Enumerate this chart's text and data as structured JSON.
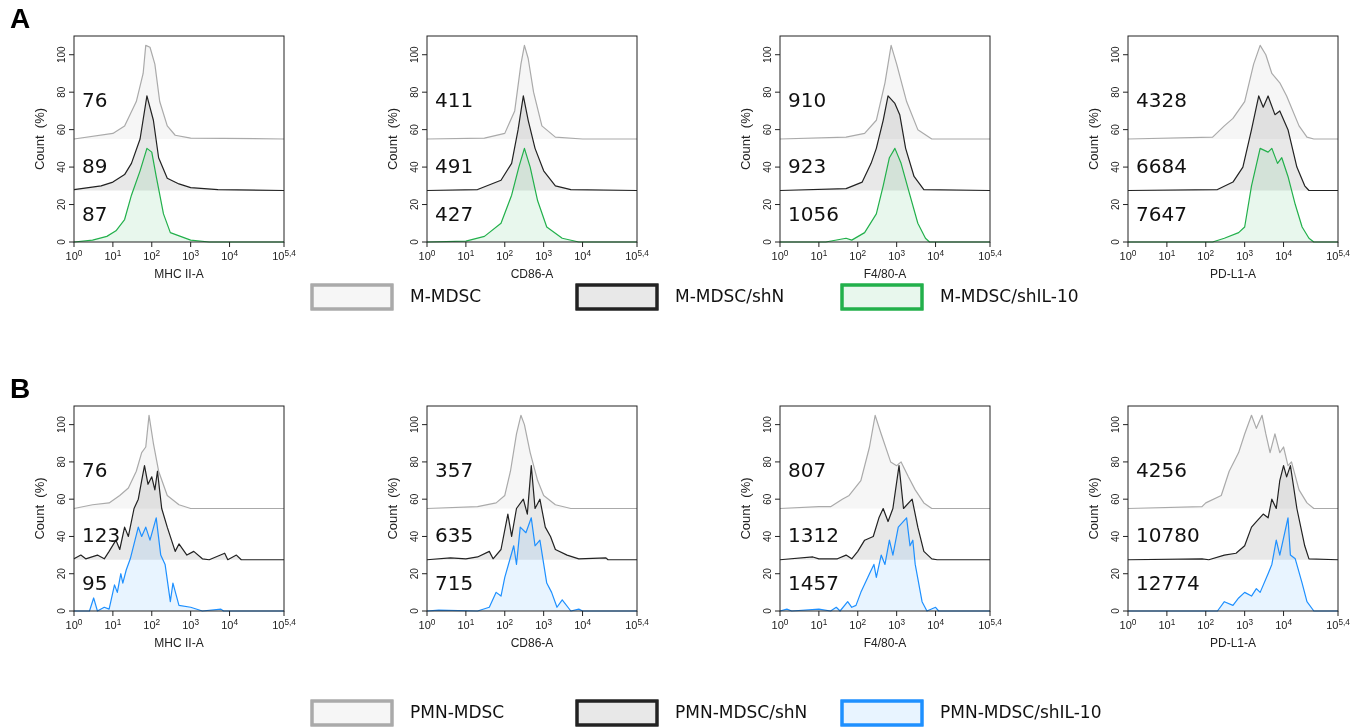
{
  "chart_data": [
    {
      "type": "area",
      "title": "A",
      "xlabel": "MHC II-A",
      "ylabel": "Count  (%)",
      "log": "x",
      "xlim": [
        1,
        251189
      ],
      "xticks": [
        {
          "value": 1,
          "label": "10$^{0}$"
        },
        {
          "value": 10,
          "label": "10$^{1}$"
        },
        {
          "value": 100,
          "label": "10$^{2}$"
        },
        {
          "value": 1000,
          "label": "10$^{3}$"
        },
        {
          "value": 10000,
          "label": "10$^{4}$"
        },
        {
          "value": 251189,
          "label": "10$^{5,4}$"
        }
      ],
      "ylim": [
        0,
        110
      ],
      "yticks": [
        0,
        20,
        40,
        60,
        80,
        100
      ],
      "legend": "bottom",
      "annotations": [
        "76",
        "89",
        "87"
      ],
      "series": [
        {
          "name": "M-MDSC",
          "color": "#aaaaaa",
          "x": [
            1,
            10,
            20,
            40,
            60,
            70,
            90,
            120,
            160,
            250,
            400,
            1000,
            251189
          ],
          "values": [
            55,
            58,
            62,
            75,
            90,
            105,
            104,
            95,
            75,
            62,
            57,
            55.5,
            55
          ]
        },
        {
          "name": "M-MDSC/shN",
          "color": "#222222",
          "x": [
            1,
            5,
            10,
            20,
            30,
            50,
            75,
            110,
            150,
            250,
            500,
            1000,
            5000,
            251189
          ],
          "values": [
            28,
            30,
            32,
            36,
            42,
            55,
            78,
            65,
            45,
            34,
            31,
            29,
            28,
            27.5
          ]
        },
        {
          "name": "M-MDSC/shIL-10",
          "color": "#22b04b",
          "x": [
            1,
            3,
            7,
            12,
            20,
            30,
            50,
            75,
            100,
            130,
            200,
            300,
            1000,
            3000,
            251189
          ],
          "values": [
            0,
            1,
            3,
            6,
            12,
            25,
            38,
            50,
            48,
            35,
            15,
            5,
            1,
            0,
            0
          ]
        }
      ]
    },
    {
      "type": "area",
      "xlabel": "CD86-A",
      "ylabel": "Count  (%)",
      "log": "x",
      "xlim": [
        1,
        251189
      ],
      "xticks": [
        {
          "value": 1,
          "label": "10$^{0}$"
        },
        {
          "value": 10,
          "label": "10$^{1}$"
        },
        {
          "value": 100,
          "label": "10$^{2}$"
        },
        {
          "value": 1000,
          "label": "10$^{3}$"
        },
        {
          "value": 10000,
          "label": "10$^{4}$"
        },
        {
          "value": 251189,
          "label": "10$^{5,4}$"
        }
      ],
      "ylim": [
        0,
        110
      ],
      "yticks": [
        0,
        20,
        40,
        60,
        80,
        100
      ],
      "annotations": [
        "411",
        "491",
        "427"
      ],
      "series": [
        {
          "color": "#aaaaaa",
          "x": [
            1,
            30,
            100,
            180,
            260,
            320,
            400,
            550,
            900,
            2000,
            10000,
            251189
          ],
          "values": [
            55,
            55.5,
            58,
            70,
            95,
            105,
            98,
            80,
            62,
            56,
            55,
            55
          ]
        },
        {
          "color": "#222222",
          "x": [
            1,
            20,
            80,
            150,
            220,
            300,
            400,
            600,
            1000,
            2000,
            5000,
            251189
          ],
          "values": [
            27.5,
            28,
            33,
            42,
            60,
            78,
            65,
            50,
            38,
            30,
            28,
            27.5
          ]
        },
        {
          "color": "#22b04b",
          "x": [
            1,
            10,
            30,
            80,
            150,
            230,
            320,
            450,
            700,
            1200,
            3000,
            8000,
            251189
          ],
          "values": [
            0,
            0.5,
            3,
            10,
            25,
            40,
            50,
            40,
            22,
            8,
            2,
            0,
            0
          ]
        }
      ]
    },
    {
      "type": "area",
      "xlabel": "F4/80-A",
      "ylabel": "Count  (%)",
      "log": "x",
      "xlim": [
        1,
        251189
      ],
      "xticks": [
        {
          "value": 1,
          "label": "10$^{0}$"
        },
        {
          "value": 10,
          "label": "10$^{1}$"
        },
        {
          "value": 100,
          "label": "10$^{2}$"
        },
        {
          "value": 1000,
          "label": "10$^{3}$"
        },
        {
          "value": 10000,
          "label": "10$^{4}$"
        },
        {
          "value": 251189,
          "label": "10$^{5,4}$"
        }
      ],
      "ylim": [
        0,
        110
      ],
      "yticks": [
        0,
        20,
        40,
        60,
        80,
        100
      ],
      "annotations": [
        "910",
        "923",
        "1056"
      ],
      "series": [
        {
          "color": "#aaaaaa",
          "x": [
            1,
            50,
            150,
            300,
            500,
            720,
            1000,
            1800,
            3500,
            8000,
            251189
          ],
          "values": [
            55,
            56,
            58,
            65,
            85,
            105,
            95,
            75,
            60,
            55,
            55
          ]
        },
        {
          "color": "#222222",
          "x": [
            1,
            50,
            130,
            220,
            300,
            450,
            600,
            900,
            1200,
            1700,
            2800,
            5000,
            251189
          ],
          "values": [
            27.5,
            28.5,
            32,
            42,
            50,
            65,
            78,
            74,
            68,
            50,
            35,
            28,
            27.5
          ]
        },
        {
          "color": "#22b04b",
          "x": [
            1,
            15,
            50,
            70,
            150,
            300,
            450,
            650,
            900,
            1300,
            2000,
            3500,
            5500,
            7000,
            251189
          ],
          "values": [
            0,
            0,
            2,
            1,
            5,
            15,
            30,
            45,
            50,
            42,
            28,
            10,
            2,
            0,
            0
          ]
        }
      ]
    },
    {
      "type": "area",
      "xlabel": "PD-L1-A",
      "ylabel": "Count  (%)",
      "log": "x",
      "xlim": [
        1,
        251189
      ],
      "xticks": [
        {
          "value": 1,
          "label": "10$^{0}$"
        },
        {
          "value": 10,
          "label": "10$^{1}$"
        },
        {
          "value": 100,
          "label": "10$^{2}$"
        },
        {
          "value": 1000,
          "label": "10$^{3}$"
        },
        {
          "value": 10000,
          "label": "10$^{4}$"
        },
        {
          "value": 251189,
          "label": "10$^{5,4}$"
        }
      ],
      "ylim": [
        0,
        110
      ],
      "yticks": [
        0,
        20,
        40,
        60,
        80,
        100
      ],
      "annotations": [
        "4328",
        "6684",
        "7647"
      ],
      "series": [
        {
          "color": "#aaaaaa",
          "x": [
            1,
            150,
            300,
            500,
            1000,
            1700,
            2500,
            3500,
            5000,
            8000,
            12000,
            25000,
            40000,
            60000,
            251189
          ],
          "values": [
            55,
            56,
            62,
            66,
            75,
            95,
            105,
            100,
            90,
            85,
            78,
            62,
            56,
            55,
            55
          ]
        },
        {
          "color": "#222222",
          "x": [
            1,
            200,
            500,
            900,
            1500,
            2300,
            3000,
            4000,
            6000,
            8000,
            13000,
            22000,
            35000,
            45000,
            251189
          ],
          "values": [
            27.5,
            28,
            32,
            40,
            60,
            78,
            72,
            78,
            68,
            70,
            60,
            40,
            30,
            27.5,
            27.5
          ]
        },
        {
          "color": "#22b04b",
          "x": [
            1,
            150,
            300,
            700,
            1000,
            1500,
            2500,
            4000,
            5000,
            7000,
            9000,
            13000,
            20000,
            30000,
            45000,
            60000,
            251189
          ],
          "values": [
            0,
            0,
            2,
            5,
            8,
            30,
            50,
            48,
            50,
            42,
            45,
            35,
            20,
            8,
            2,
            0,
            0
          ]
        }
      ]
    },
    {
      "type": "area",
      "title": "B",
      "xlabel": "MHC II-A",
      "ylabel": "Count  (%)",
      "log": "x",
      "xlim": [
        1,
        251189
      ],
      "xticks": [
        {
          "value": 1,
          "label": "10$^{0}$"
        },
        {
          "value": 10,
          "label": "10$^{1}$"
        },
        {
          "value": 100,
          "label": "10$^{2}$"
        },
        {
          "value": 1000,
          "label": "10$^{3}$"
        },
        {
          "value": 10000,
          "label": "10$^{4}$"
        },
        {
          "value": 251189,
          "label": "10$^{5,4}$"
        }
      ],
      "ylim": [
        0,
        110
      ],
      "yticks": [
        0,
        20,
        40,
        60,
        80,
        100
      ],
      "legend": "bottom",
      "annotations": [
        "76",
        "123",
        "95"
      ],
      "series": [
        {
          "name": "PMN-MDSC",
          "color": "#aaaaaa",
          "x": [
            1,
            3,
            8,
            15,
            25,
            40,
            55,
            70,
            85,
            110,
            150,
            250,
            500,
            1000,
            251189
          ],
          "values": [
            55,
            57,
            58,
            62,
            66,
            75,
            85,
            88,
            105,
            90,
            75,
            62,
            57,
            55,
            55
          ]
        },
        {
          "name": "PMN-MDSC/shN",
          "color": "#222222",
          "x": [
            1,
            1.5,
            2,
            4,
            6,
            8,
            12,
            15,
            20,
            25,
            35,
            45,
            55,
            65,
            80,
            100,
            120,
            140,
            180,
            250,
            400,
            500,
            800,
            1200,
            2000,
            3000,
            7500,
            9000,
            15000,
            20000,
            251189
          ],
          "values": [
            28,
            30,
            28,
            30,
            28,
            32,
            38,
            33,
            45,
            40,
            55,
            60,
            70,
            78,
            68,
            72,
            65,
            75,
            55,
            45,
            32,
            36,
            30,
            32,
            28,
            27.5,
            31,
            27.5,
            30,
            27.5,
            27.5
          ]
        },
        {
          "name": "PMN-MDSC/shIL-10",
          "color": "#1e90ff",
          "x": [
            1,
            2.5,
            3.2,
            4,
            6,
            8,
            11,
            13,
            16,
            18,
            22,
            28,
            45,
            55,
            70,
            90,
            130,
            170,
            220,
            300,
            350,
            500,
            1000,
            2000,
            6000,
            7000,
            251189
          ],
          "values": [
            0,
            0,
            7,
            0,
            2,
            1,
            14,
            10,
            20,
            15,
            22,
            28,
            45,
            40,
            45,
            38,
            50,
            30,
            25,
            5,
            15,
            3,
            2,
            0,
            1,
            0,
            0
          ]
        }
      ]
    },
    {
      "type": "area",
      "xlabel": "CD86-A",
      "ylabel": "Count  (%)",
      "log": "x",
      "xlim": [
        1,
        251189
      ],
      "xticks": [
        {
          "value": 1,
          "label": "10$^{0}$"
        },
        {
          "value": 10,
          "label": "10$^{1}$"
        },
        {
          "value": 100,
          "label": "10$^{2}$"
        },
        {
          "value": 1000,
          "label": "10$^{3}$"
        },
        {
          "value": 10000,
          "label": "10$^{4}$"
        },
        {
          "value": 251189,
          "label": "10$^{5,4}$"
        }
      ],
      "ylim": [
        0,
        110
      ],
      "yticks": [
        0,
        20,
        40,
        60,
        80,
        100
      ],
      "annotations": [
        "357",
        "635",
        "715"
      ],
      "series": [
        {
          "color": "#aaaaaa",
          "x": [
            1,
            20,
            60,
            100,
            140,
            200,
            260,
            320,
            450,
            700,
            1000,
            2000,
            5000,
            251189
          ],
          "values": [
            55,
            56,
            58,
            62,
            75,
            95,
            105,
            100,
            85,
            70,
            62,
            57,
            55,
            55
          ]
        },
        {
          "color": "#222222",
          "x": [
            1,
            4,
            10,
            20,
            40,
            50,
            80,
            120,
            150,
            200,
            300,
            380,
            480,
            600,
            800,
            1100,
            1500,
            2000,
            4000,
            8000,
            40000,
            45000,
            251189
          ],
          "values": [
            27.5,
            28.5,
            28,
            29,
            32,
            28,
            33,
            52,
            40,
            55,
            60,
            52,
            78,
            55,
            60,
            45,
            40,
            33,
            30,
            28,
            28.5,
            27.5,
            27.5
          ]
        },
        {
          "color": "#1e90ff",
          "x": [
            1,
            2,
            20,
            40,
            60,
            80,
            100,
            170,
            200,
            250,
            350,
            480,
            600,
            800,
            1200,
            1600,
            2200,
            3000,
            5000,
            8000,
            10000,
            251189
          ],
          "values": [
            0,
            0.5,
            0,
            2,
            10,
            8,
            18,
            35,
            25,
            45,
            42,
            50,
            35,
            38,
            15,
            10,
            2,
            6,
            0,
            1,
            0,
            0
          ]
        }
      ]
    },
    {
      "type": "area",
      "xlabel": "F4/80-A",
      "ylabel": "Count  (%)",
      "log": "x",
      "xlim": [
        1,
        251189
      ],
      "xticks": [
        {
          "value": 1,
          "label": "10$^{0}$"
        },
        {
          "value": 10,
          "label": "10$^{1}$"
        },
        {
          "value": 100,
          "label": "10$^{2}$"
        },
        {
          "value": 1000,
          "label": "10$^{3}$"
        },
        {
          "value": 10000,
          "label": "10$^{4}$"
        },
        {
          "value": 251189,
          "label": "10$^{5,4}$"
        }
      ],
      "ylim": [
        0,
        110
      ],
      "yticks": [
        0,
        20,
        40,
        60,
        80,
        100
      ],
      "annotations": [
        "807",
        "1312",
        "1457"
      ],
      "series": [
        {
          "color": "#aaaaaa",
          "x": [
            1,
            10,
            20,
            40,
            60,
            120,
            200,
            280,
            400,
            700,
            1000,
            1300,
            2000,
            3000,
            5000,
            8000,
            251189
          ],
          "values": [
            55,
            56,
            56,
            60,
            62,
            70,
            88,
            105,
            95,
            80,
            78,
            80,
            72,
            65,
            58,
            55,
            55
          ]
        },
        {
          "color": "#222222",
          "x": [
            1,
            7,
            10,
            30,
            50,
            70,
            100,
            150,
            250,
            350,
            450,
            600,
            800,
            1150,
            1500,
            2500,
            3500,
            5000,
            8000,
            11000,
            251189
          ],
          "values": [
            27.5,
            29,
            28,
            28,
            30,
            28,
            32,
            38,
            40,
            50,
            55,
            48,
            55,
            78,
            55,
            60,
            45,
            32,
            28,
            27.5,
            27.5
          ]
        },
        {
          "color": "#1e90ff",
          "x": [
            1,
            1.5,
            2,
            10,
            20,
            28,
            35,
            55,
            70,
            90,
            120,
            200,
            260,
            300,
            400,
            500,
            650,
            800,
            1100,
            1800,
            2200,
            2600,
            3000,
            4500,
            6000,
            10000,
            12000,
            251189
          ],
          "values": [
            0,
            1,
            0,
            1,
            0,
            2,
            0,
            5,
            2,
            3,
            10,
            20,
            25,
            18,
            30,
            25,
            38,
            30,
            45,
            50,
            35,
            38,
            25,
            5,
            0,
            2,
            0,
            0
          ]
        }
      ]
    },
    {
      "type": "area",
      "xlabel": "PD-L1-A",
      "ylabel": "Count  (%)",
      "log": "x",
      "xlim": [
        1,
        251189
      ],
      "xticks": [
        {
          "value": 1,
          "label": "10$^{0}$"
        },
        {
          "value": 10,
          "label": "10$^{1}$"
        },
        {
          "value": 100,
          "label": "10$^{2}$"
        },
        {
          "value": 1000,
          "label": "10$^{3}$"
        },
        {
          "value": 10000,
          "label": "10$^{4}$"
        },
        {
          "value": 251189,
          "label": "10$^{5,4}$"
        }
      ],
      "ylim": [
        0,
        110
      ],
      "yticks": [
        0,
        20,
        40,
        60,
        80,
        100
      ],
      "annotations": [
        "4256",
        "10780",
        "12774"
      ],
      "series": [
        {
          "color": "#aaaaaa",
          "x": [
            1,
            80,
            100,
            250,
            400,
            700,
            1000,
            1500,
            2000,
            2800,
            3500,
            4500,
            6000,
            8000,
            10000,
            13000,
            16000,
            25000,
            40000,
            60000,
            251189
          ],
          "values": [
            55,
            56,
            58,
            62,
            75,
            85,
            95,
            105,
            98,
            105,
            95,
            85,
            95,
            85,
            88,
            78,
            80,
            65,
            58,
            55,
            55
          ]
        },
        {
          "color": "#222222",
          "x": [
            1,
            80,
            120,
            300,
            600,
            1000,
            1500,
            2000,
            3000,
            4000,
            5000,
            6500,
            8000,
            10000,
            12000,
            15000,
            22000,
            35000,
            45000,
            251189
          ],
          "values": [
            27.5,
            28,
            27.5,
            30,
            31,
            35,
            45,
            48,
            52,
            50,
            60,
            55,
            70,
            78,
            72,
            78,
            55,
            35,
            28,
            27.5
          ]
        },
        {
          "color": "#1e90ff",
          "x": [
            1,
            200,
            300,
            500,
            700,
            1000,
            1500,
            2000,
            2500,
            4000,
            5000,
            6500,
            8000,
            13000,
            15000,
            20000,
            30000,
            40000,
            60000,
            251189
          ],
          "values": [
            0,
            0,
            5,
            3,
            7,
            10,
            8,
            12,
            10,
            20,
            25,
            38,
            30,
            50,
            30,
            28,
            15,
            5,
            0,
            0
          ]
        }
      ]
    }
  ]
}
